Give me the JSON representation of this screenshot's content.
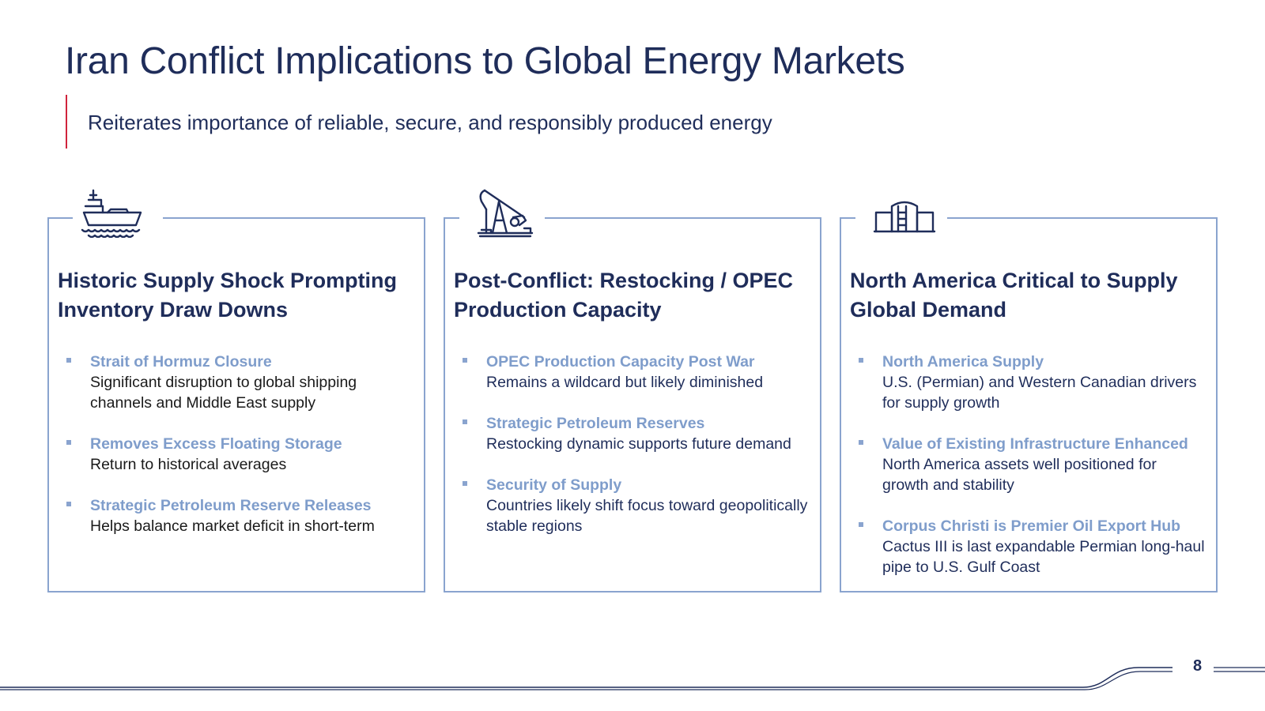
{
  "header": {
    "title": "Iran Conflict Implications to Global Energy Markets",
    "subtitle": "Reiterates importance of reliable, secure, and responsibly produced energy"
  },
  "colors": {
    "navy": "#1f2d5a",
    "accent_red": "#d0233c",
    "border_blue": "#8aa4cf",
    "bullet_title_blue": "#7f9dcb"
  },
  "cards": [
    {
      "icon": "ship-icon",
      "heading": "Historic Supply Shock Prompting Inventory Draw Downs",
      "bullets": [
        {
          "title": "Strait of Hormuz Closure",
          "text": "Significant disruption to global shipping channels and Middle East supply"
        },
        {
          "title": "Removes Excess Floating Storage",
          "text": "Return to historical averages"
        },
        {
          "title": "Strategic Petroleum Reserve Releases",
          "text": "Helps balance market deficit in short-term"
        }
      ]
    },
    {
      "icon": "pumpjack-icon",
      "heading": "Post-Conflict: Restocking / OPEC Production Capacity",
      "bullets": [
        {
          "title": "OPEC Production Capacity Post War",
          "text": "Remains a wildcard but likely diminished"
        },
        {
          "title": "Strategic Petroleum Reserves",
          "text": "Restocking dynamic supports future demand"
        },
        {
          "title": "Security of Supply",
          "text": "Countries likely shift focus toward geopolitically stable regions"
        }
      ]
    },
    {
      "icon": "storage-tank-icon",
      "heading": "North America Critical to Supply Global Demand",
      "bullets": [
        {
          "title": "North America Supply",
          "text": "U.S. (Permian) and Western Canadian drivers for supply growth"
        },
        {
          "title": "Value of Existing Infrastructure Enhanced",
          "text": "North America assets well positioned for growth and stability"
        },
        {
          "title": "Corpus Christi is Premier Oil Export Hub",
          "text": "Cactus III is last expandable Permian long-haul pipe to U.S. Gulf Coast"
        }
      ]
    }
  ],
  "footer": {
    "page_number": "8"
  }
}
